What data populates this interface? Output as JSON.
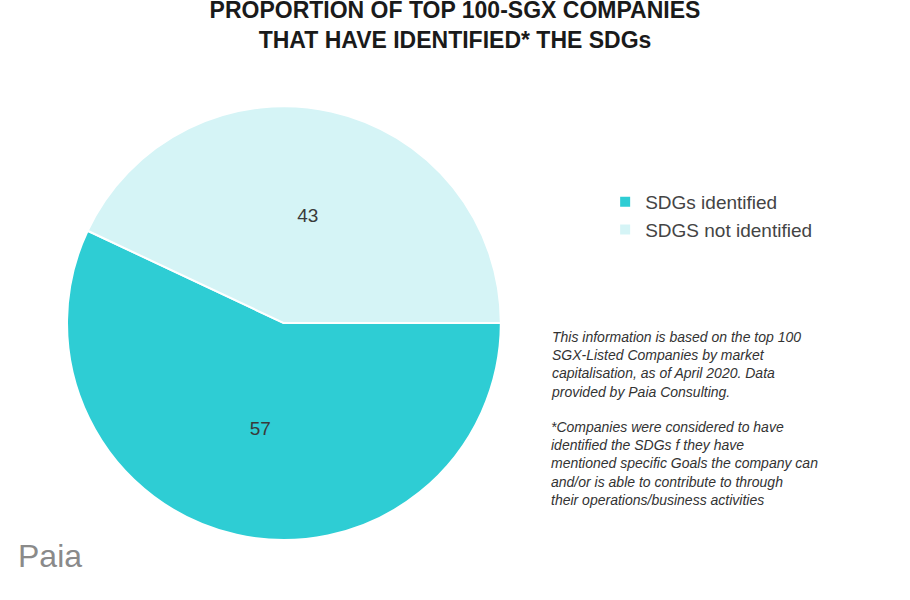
{
  "chart_data": {
    "type": "pie",
    "title": [
      "PROPORTION OF TOP 100-SGX COMPANIES",
      "THAT HAVE IDENTIFIED* THE SDGs"
    ],
    "categories": [
      "SDGs identified",
      "SDGS not identified"
    ],
    "values": [
      57,
      43
    ],
    "colors": [
      "#2ecdd4",
      "#d5f4f6"
    ],
    "data_labels": true,
    "legend": "right",
    "annotations": [
      "This information is based on the top 100 SGX-Listed Companies by market capitalisation, as of April 2020. Data provided by Paia Consulting.",
      "*Companies were considered to have identified the SDGs f they have mentioned specific Goals the company can and/or is able to contribute to through their operations/business activities"
    ],
    "logo": "Paia"
  }
}
